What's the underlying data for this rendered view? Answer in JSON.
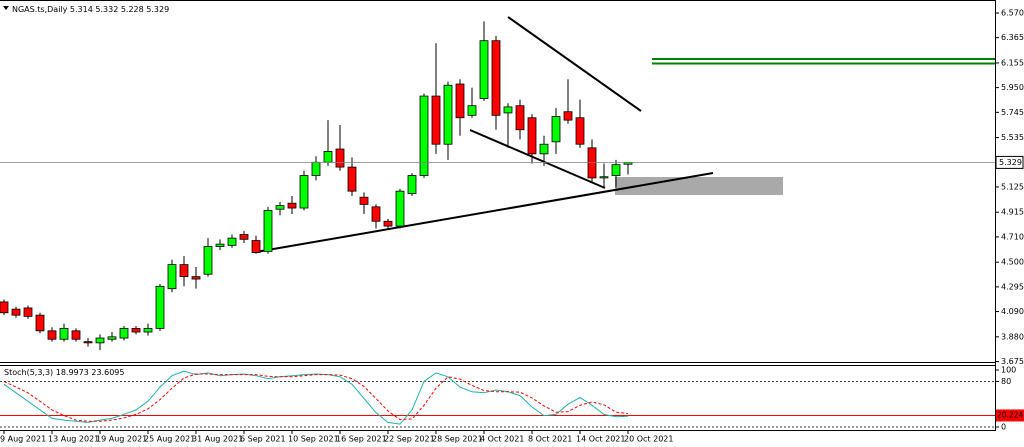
{
  "chart_data": [
    {
      "type": "candlestick",
      "title": "NGAS.ts,Daily",
      "categories": [
        "9 Aug 2021",
        null,
        null,
        null,
        "13 Aug 2021",
        null,
        null,
        null,
        "19 Aug 2021",
        null,
        null,
        null,
        "25 Aug 2021",
        null,
        null,
        null,
        "31 Aug 2021",
        null,
        null,
        null,
        "6 Sep 2021",
        null,
        null,
        null,
        "10 Sep 2021",
        null,
        null,
        null,
        "16 Sep 2021",
        null,
        null,
        null,
        "22 Sep 2021",
        null,
        null,
        null,
        "28 Sep 2021",
        null,
        null,
        null,
        "4 Oct 2021",
        null,
        null,
        null,
        "8 Oct 2021",
        null,
        null,
        null,
        "14 Oct 2021",
        null,
        null,
        null,
        "20 Oct 2021"
      ],
      "open": [
        4.17,
        4.11,
        4.12,
        4.06,
        3.93,
        3.86,
        3.93,
        3.84,
        3.83,
        3.86,
        3.87,
        3.95,
        3.92,
        3.95,
        4.28,
        4.48,
        4.38,
        4.4,
        4.63,
        4.64,
        4.73,
        4.68,
        4.59,
        4.94,
        4.99,
        4.95,
        5.22,
        5.33,
        5.44,
        5.29,
        5.04,
        4.96,
        4.84,
        4.8,
        5.07,
        5.22,
        5.88,
        5.48,
        5.98,
        5.72,
        5.86,
        6.34,
        5.74,
        5.8,
        5.7,
        5.4,
        5.5,
        5.75,
        5.7,
        5.45,
        5.2,
        5.22,
        5.314
      ],
      "high": [
        4.19,
        4.13,
        4.14,
        4.08,
        3.96,
        3.99,
        3.95,
        3.87,
        3.9,
        3.92,
        3.97,
        3.97,
        3.99,
        4.32,
        4.52,
        4.55,
        4.46,
        4.7,
        4.69,
        4.73,
        4.76,
        4.72,
        4.96,
        5.0,
        5.05,
        5.26,
        5.38,
        5.68,
        5.64,
        5.37,
        5.08,
        4.98,
        4.86,
        5.11,
        5.24,
        5.9,
        6.32,
        6.0,
        6.02,
        5.95,
        6.5,
        6.38,
        5.82,
        5.85,
        5.73,
        5.55,
        5.78,
        6.02,
        5.85,
        5.52,
        5.32,
        5.35,
        5.332
      ],
      "low": [
        4.06,
        4.04,
        4.03,
        3.91,
        3.84,
        3.84,
        3.84,
        3.8,
        3.77,
        3.84,
        3.85,
        3.9,
        3.89,
        3.93,
        4.25,
        4.3,
        4.28,
        4.38,
        4.6,
        4.62,
        4.66,
        4.57,
        4.57,
        4.89,
        4.9,
        4.93,
        5.18,
        5.3,
        5.26,
        5.05,
        4.9,
        4.78,
        4.77,
        4.78,
        5.05,
        5.2,
        5.4,
        5.35,
        5.55,
        5.7,
        5.84,
        5.6,
        5.45,
        5.52,
        5.32,
        5.3,
        5.4,
        5.65,
        5.45,
        5.17,
        5.12,
        5.12,
        5.228
      ],
      "close": [
        4.08,
        4.06,
        4.05,
        3.93,
        3.86,
        3.95,
        3.86,
        3.83,
        3.87,
        3.88,
        3.95,
        3.92,
        3.95,
        4.3,
        4.48,
        4.38,
        4.36,
        4.63,
        4.65,
        4.7,
        4.69,
        4.58,
        4.93,
        4.97,
        4.95,
        5.22,
        5.33,
        5.42,
        5.29,
        5.09,
        4.98,
        4.84,
        4.8,
        5.09,
        5.22,
        5.88,
        5.48,
        5.97,
        5.7,
        5.8,
        6.34,
        5.72,
        5.79,
        5.6,
        5.4,
        5.48,
        5.71,
        5.68,
        5.48,
        5.2,
        5.21,
        5.31,
        5.329
      ],
      "up_color": "#00ff00",
      "down_color": "#ff0000",
      "ylim": [
        3.671,
        6.678
      ],
      "yticks": [
        {
          "value": 6.57,
          "label": "6.570"
        },
        6.365,
        6.155,
        {
          "value": 5.95,
          "label": "5.950"
        },
        5.745,
        5.535,
        5.125,
        4.915,
        {
          "value": 4.71,
          "label": "4.710"
        },
        {
          "value": 4.5,
          "label": "4.500"
        },
        4.295,
        {
          "value": 4.09,
          "label": "4.090"
        },
        {
          "value": 3.88,
          "label": "3.880"
        },
        3.675
      ]
    },
    {
      "type": "line",
      "title": "Stoch(5,3,3)",
      "series": [
        {
          "color": "#20b2aa",
          "dashed": false,
          "values": [
            75,
            60,
            45,
            30,
            15,
            12,
            10,
            8,
            12,
            15,
            22,
            30,
            45,
            70,
            90,
            98,
            92,
            95,
            90,
            92,
            93,
            90,
            85,
            88,
            90,
            92,
            93,
            92,
            88,
            75,
            50,
            25,
            8,
            5,
            30,
            80,
            95,
            88,
            70,
            62,
            60,
            65,
            62,
            55,
            35,
            20,
            22,
            40,
            52,
            38,
            22,
            18,
            18.9973
          ]
        },
        {
          "color": "#ff0000",
          "dashed": true,
          "values": [
            80,
            70,
            60,
            45,
            30,
            20,
            12,
            10,
            10,
            12,
            16,
            22,
            32,
            48,
            68,
            86,
            93,
            93,
            92,
            92,
            92,
            92,
            89,
            88,
            88,
            90,
            92,
            92,
            91,
            85,
            71,
            50,
            28,
            13,
            14,
            38,
            68,
            88,
            84,
            73,
            64,
            62,
            62,
            61,
            51,
            37,
            26,
            27,
            38,
            44,
            39,
            26,
            23.6095
          ]
        }
      ],
      "level": 20.2247,
      "level_color": "#ff0000",
      "ylim": [
        -5.3,
        108.8
      ],
      "yticks": [
        100,
        80,
        0
      ]
    }
  ]
}
